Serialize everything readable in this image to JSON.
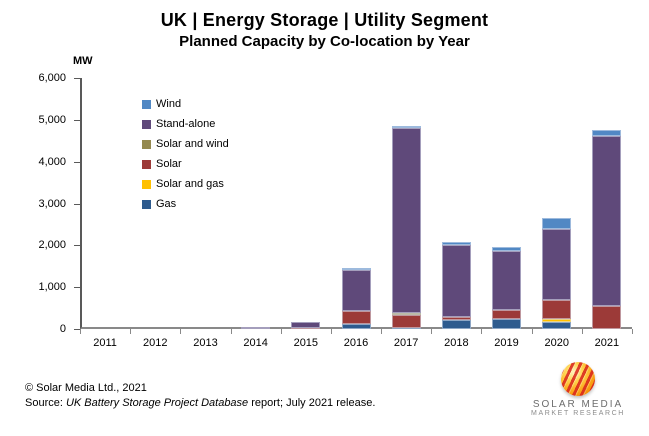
{
  "title": "UK | Energy Storage | Utility Segment",
  "subtitle": "Planned Capacity by Co-location by Year",
  "chart_data": {
    "type": "bar",
    "stacked": true,
    "unit_label": "MW",
    "ylim": [
      0,
      6000
    ],
    "yticks": [
      0,
      1000,
      2000,
      3000,
      4000,
      5000,
      6000
    ],
    "ytick_labels": [
      "0",
      "1,000",
      "2,000",
      "3,000",
      "4,000",
      "5,000",
      "6,000"
    ],
    "categories": [
      "2011",
      "2012",
      "2013",
      "2014",
      "2015",
      "2016",
      "2017",
      "2018",
      "2019",
      "2020",
      "2021"
    ],
    "series": [
      {
        "name": "Gas",
        "color": "#2e5b8e",
        "values": [
          0,
          0,
          0,
          0,
          0,
          120,
          30,
          220,
          240,
          165,
          0
        ]
      },
      {
        "name": "Solar and gas",
        "color": "#ffc000",
        "values": [
          0,
          0,
          0,
          0,
          0,
          0,
          0,
          0,
          0,
          70,
          0
        ]
      },
      {
        "name": "Solar",
        "color": "#9c3a38",
        "values": [
          0,
          0,
          0,
          0,
          25,
          300,
          310,
          70,
          220,
          450,
          550
        ]
      },
      {
        "name": "Solar and wind",
        "color": "#94894f",
        "values": [
          0,
          0,
          0,
          0,
          0,
          0,
          50,
          0,
          0,
          0,
          0
        ]
      },
      {
        "name": "Stand-alone",
        "color": "#5f497a",
        "values": [
          0,
          0,
          0,
          60,
          150,
          990,
          4410,
          1720,
          1410,
          1715,
          4060
        ]
      },
      {
        "name": "Wind",
        "color": "#5188c4",
        "values": [
          0,
          0,
          0,
          0,
          0,
          50,
          50,
          70,
          100,
          250,
          150
        ]
      }
    ],
    "totals": [
      0,
      0,
      0,
      60,
      175,
      1460,
      4850,
      2080,
      1970,
      2650,
      4760
    ],
    "legend_order": [
      "Wind",
      "Stand-alone",
      "Solar and wind",
      "Solar",
      "Solar and gas",
      "Gas"
    ],
    "legend_position": "top-left-inside",
    "grid": false
  },
  "footer": {
    "copyright": "© Solar Media Ltd., 2021",
    "source_prefix": "Source: ",
    "source_italic": "UK Battery Storage Project Database",
    "source_suffix": " report; July 2021 release."
  },
  "logo": {
    "line1": "SOLAR MEDIA",
    "line2": "MARKET RESEARCH"
  }
}
